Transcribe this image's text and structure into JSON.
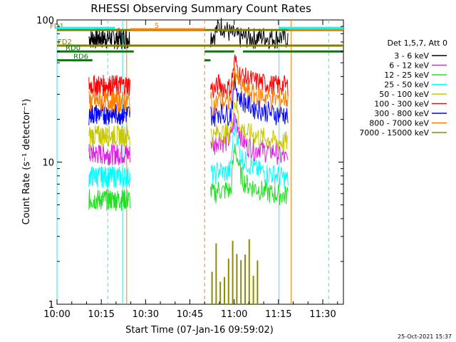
{
  "chart_data": {
    "type": "line",
    "title": "RHESSI Observing Summary Count Rates",
    "xlabel": "Start Time (07-Jan-16 09:59:02)",
    "ylabel": "Count Rate (s⁻¹ detector⁻¹)",
    "y_scale": "log",
    "ylim": [
      1,
      100
    ],
    "xlim_min_after_1000": [
      0,
      97
    ],
    "x_ticks": [
      "10:00",
      "10:15",
      "10:30",
      "10:45",
      "11:00",
      "11:15",
      "11:30"
    ],
    "x_tick_minutes": [
      0,
      15,
      30,
      45,
      60,
      75,
      90
    ],
    "y_ticks": [
      "1",
      "10",
      "100"
    ],
    "y_tick_values": [
      1,
      10,
      100
    ],
    "legend_header": "Det 1,5,7, Att 0",
    "legend_placement": "right",
    "timestamp": "25-Oct-2021 15:37",
    "series": [
      {
        "name": "3 - 6 keV",
        "color": "#000000",
        "base": [
          78,
          80,
          90,
          92,
          85,
          80,
          78,
          75,
          76,
          76,
          76,
          75,
          76,
          77,
          75,
          76,
          75,
          76,
          75,
          75
        ],
        "b1": 75
      },
      {
        "name": "6 - 12 keV",
        "color": "#e020e0",
        "base": [
          14,
          13,
          15,
          14,
          14,
          15,
          21,
          17,
          14,
          13,
          13,
          12,
          13,
          12,
          12,
          12,
          12,
          11,
          11,
          10
        ],
        "b1": 11.5
      },
      {
        "name": "12 - 25 keV",
        "color": "#20e020",
        "base": [
          6.2,
          6,
          6.5,
          6.2,
          6.5,
          6.2,
          13,
          9,
          7.5,
          7,
          6.8,
          6.6,
          6.5,
          6.3,
          6.2,
          6,
          6,
          6,
          5.8,
          6
        ],
        "b1": 5.5
      },
      {
        "name": "25 - 50 keV",
        "color": "#00ffff",
        "base": [
          8.5,
          8,
          9,
          8.5,
          8.5,
          9,
          19,
          12,
          10.5,
          10,
          9.5,
          9,
          8.8,
          8.6,
          8.4,
          8.3,
          8.2,
          8,
          7.8,
          7.5
        ],
        "b1": 8
      },
      {
        "name": "50 - 100 keV",
        "color": "#c8c800",
        "base": [
          16,
          15,
          17,
          16,
          16,
          17,
          28,
          19,
          17,
          16,
          16,
          15.5,
          15,
          15,
          14.5,
          14.5,
          14,
          14,
          14,
          14
        ],
        "b1": 15.5
      },
      {
        "name": "100 - 300 keV",
        "color": "#ff0000",
        "base": [
          34,
          32,
          36,
          34,
          33,
          34,
          52,
          42,
          40,
          39,
          38,
          37,
          37,
          36,
          36,
          35,
          35,
          35,
          35,
          34
        ],
        "b1": 35
      },
      {
        "name": "300 - 800 keV",
        "color": "#0000ff",
        "base": [
          22,
          21,
          23,
          22,
          22,
          22,
          37,
          29,
          27,
          26,
          25,
          24,
          24,
          23,
          23,
          22,
          22,
          22,
          22,
          21
        ],
        "b1": 22
      },
      {
        "name": "800 - 7000 keV",
        "color": "#ff8000",
        "base": [
          27,
          25,
          28,
          27,
          26,
          27,
          45,
          36,
          33,
          32,
          31,
          30,
          30,
          29,
          29,
          28,
          28,
          28,
          28,
          28
        ],
        "b1": 27
      },
      {
        "name": "7000 - 15000 keV",
        "color": "#8c8c00",
        "base": [],
        "b1": 0
      }
    ],
    "segments_minutes": [
      [
        10.8,
        24.7
      ],
      [
        52.0,
        78.2
      ]
    ],
    "flags": [
      {
        "label": "FD1",
        "color": "#808000",
        "y": 85,
        "segments": [
          [
            0,
            97
          ]
        ]
      },
      {
        "label": "FD2",
        "color": "#808000",
        "y": 66,
        "segments": [
          [
            0,
            97
          ]
        ]
      },
      {
        "label": "RD0",
        "color": "#008000",
        "y": 60,
        "segments": [
          [
            0,
            26
          ],
          [
            50,
            60
          ],
          [
            63,
            97
          ]
        ]
      },
      {
        "label": "RD6",
        "color": "#008000",
        "y": 52,
        "segments": [
          [
            0,
            12
          ],
          [
            50,
            52
          ]
        ]
      },
      {
        "label": "S",
        "color": "#ff8000",
        "y": 86,
        "segments": [
          [
            24.8,
            50
          ],
          [
            78.5,
            97
          ]
        ]
      },
      {
        "label": "",
        "color": "#00ffff",
        "y": 88,
        "segments": [
          [
            0,
            19.6
          ],
          [
            75.2,
            97
          ]
        ]
      }
    ],
    "vlines": [
      {
        "x_min": 0.0,
        "color": "#00ffff",
        "dash": false
      },
      {
        "x_min": 17.2,
        "color": "#00ffff",
        "dash": true
      },
      {
        "x_min": 22.2,
        "color": "#00ffff",
        "dash": false
      },
      {
        "x_min": 23.6,
        "color": "#ff8000",
        "dash": false
      },
      {
        "x_min": 50.0,
        "color": "#ff8000",
        "dash": true
      },
      {
        "x_min": 75.2,
        "color": "#00ffff",
        "dash": false
      },
      {
        "x_min": 79.3,
        "color": "#ff8000",
        "dash": false
      },
      {
        "x_min": 92.0,
        "color": "#00ffff",
        "dash": true
      }
    ]
  }
}
